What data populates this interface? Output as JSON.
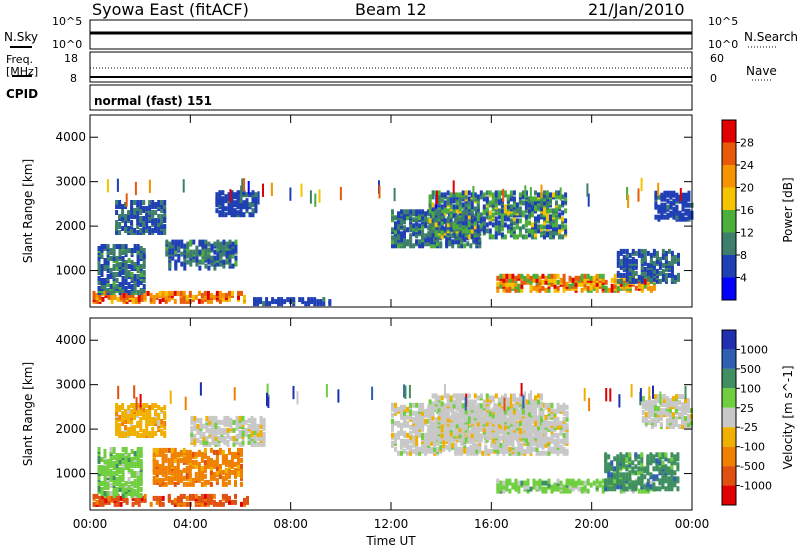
{
  "header": {
    "station": "Syowa East (fitACF)",
    "beam": "Beam 12",
    "date": "21/Jan/2010"
  },
  "strip": {
    "nsky_label": "N.Sky",
    "nsearch_label": "N.Search",
    "freq_label_1": "Freq.",
    "freq_label_2": "[MHz]",
    "nave_label": "Nave",
    "cpid_label": "CPID",
    "cpid_value": "normal (fast) 151",
    "noise_ticks": [
      "10^5",
      "10^0"
    ],
    "freq_ticks": [
      "18",
      "8"
    ],
    "nave_ticks": [
      "60",
      "0"
    ]
  },
  "colors": {
    "power": [
      "#0000ff",
      "#1f3fb4",
      "#3d7f6a",
      "#4caf3c",
      "#f5c400",
      "#f59300",
      "#e85a0a",
      "#e00000"
    ],
    "velocity": [
      "#1f2fb0",
      "#2f5fb0",
      "#3f8f60",
      "#6fcf3f",
      "#c8c8c8",
      "#f0b000",
      "#f08000",
      "#e05010",
      "#e00000"
    ]
  },
  "chart_data": [
    {
      "type": "heatmap",
      "title": "Power",
      "xlabel": "Time UT",
      "ylabel": "Slant Range [km]",
      "x_ticks": [
        "00:00",
        "04:00",
        "08:00",
        "12:00",
        "16:00",
        "20:00",
        "00:00"
      ],
      "xlim_hours": [
        0,
        24
      ],
      "y_ticks": [
        1000,
        2000,
        3000,
        4000
      ],
      "ylim": [
        180,
        4500
      ],
      "colorbar_label": "Power [dB]",
      "colorbar_ticks": [
        4,
        8,
        12,
        16,
        20,
        24,
        28
      ],
      "colorbar_range": [
        0,
        30
      ],
      "regions": [
        {
          "t0": 0.1,
          "t1": 6.3,
          "r0": 250,
          "r1": 450,
          "v0": 16,
          "v1": 28
        },
        {
          "t0": 0.3,
          "t1": 2.2,
          "r0": 450,
          "r1": 1500,
          "v0": 4,
          "v1": 12
        },
        {
          "t0": 1.0,
          "t1": 3.0,
          "r0": 1800,
          "r1": 2500,
          "v0": 4,
          "v1": 10
        },
        {
          "t0": 3.0,
          "t1": 5.8,
          "r0": 1000,
          "r1": 1600,
          "v0": 4,
          "v1": 12
        },
        {
          "t0": 5.0,
          "t1": 6.6,
          "r0": 2200,
          "r1": 2700,
          "v0": 4,
          "v1": 8
        },
        {
          "t0": 6.5,
          "t1": 9.5,
          "r0": 200,
          "r1": 300,
          "v0": 4,
          "v1": 8
        },
        {
          "t0": 12.0,
          "t1": 15.5,
          "r0": 1500,
          "r1": 2300,
          "v0": 4,
          "v1": 12
        },
        {
          "t0": 13.5,
          "t1": 19.0,
          "r0": 1700,
          "r1": 2700,
          "v0": 4,
          "v1": 16
        },
        {
          "t0": 16.2,
          "t1": 22.5,
          "r0": 500,
          "r1": 850,
          "v0": 12,
          "v1": 28
        },
        {
          "t0": 21.0,
          "t1": 23.5,
          "r0": 700,
          "r1": 1400,
          "v0": 4,
          "v1": 10
        },
        {
          "t0": 22.5,
          "t1": 24.0,
          "r0": 2100,
          "r1": 2700,
          "v0": 4,
          "v1": 8
        }
      ]
    },
    {
      "type": "heatmap",
      "title": "Velocity",
      "xlabel": "Time UT",
      "ylabel": "Slant Range [km]",
      "x_ticks": [
        "00:00",
        "04:00",
        "08:00",
        "12:00",
        "16:00",
        "20:00",
        "00:00"
      ],
      "xlim_hours": [
        0,
        24
      ],
      "y_ticks": [
        1000,
        2000,
        3000,
        4000
      ],
      "ylim": [
        180,
        4500
      ],
      "colorbar_label": "Velocity [m s^-1]",
      "colorbar_ticks": [
        "1000",
        "500",
        "100",
        "25",
        "-25",
        "-100",
        "-500",
        "-1000"
      ],
      "regions": [
        {
          "t0": 0.1,
          "t1": 6.3,
          "r0": 250,
          "r1": 450,
          "c": 7
        },
        {
          "t0": 0.3,
          "t1": 2.0,
          "r0": 450,
          "r1": 1500,
          "c": 3
        },
        {
          "t0": 1.0,
          "t1": 3.0,
          "r0": 1800,
          "r1": 2500,
          "c": 5
        },
        {
          "t0": 2.5,
          "t1": 6.0,
          "r0": 700,
          "r1": 1500,
          "c": 6
        },
        {
          "t0": 4.0,
          "t1": 7.0,
          "r0": 1600,
          "r1": 2200,
          "c": 4
        },
        {
          "t0": 12.0,
          "t1": 19.0,
          "r0": 1400,
          "r1": 2500,
          "c": 4
        },
        {
          "t0": 13.5,
          "t1": 18.0,
          "r0": 1700,
          "r1": 2700,
          "c": 4
        },
        {
          "t0": 16.2,
          "t1": 22.5,
          "r0": 550,
          "r1": 800,
          "c": 3
        },
        {
          "t0": 20.5,
          "t1": 23.5,
          "r0": 600,
          "r1": 1400,
          "c": 2
        },
        {
          "t0": 22.0,
          "t1": 24.0,
          "r0": 2000,
          "r1": 2700,
          "c": 4
        }
      ]
    }
  ]
}
